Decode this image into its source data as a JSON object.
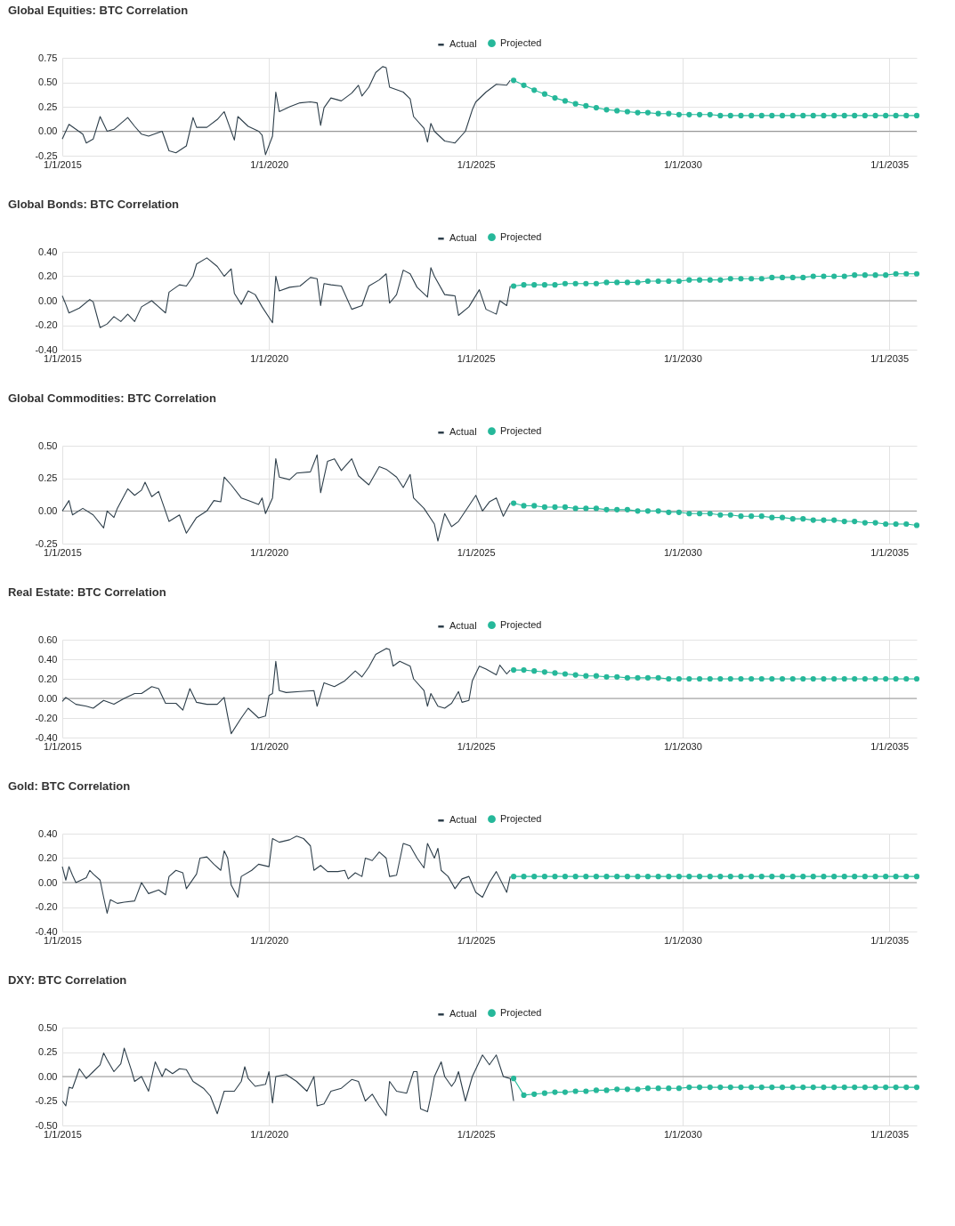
{
  "chart_data": [
    {
      "type": "line",
      "title": "Global Equities: BTC Correlation",
      "xlim": [
        "2015-01-01",
        "2035-09-01"
      ],
      "xticks": [
        {
          "value": "2015-01-01",
          "label": "1/1/2015"
        },
        {
          "value": "2020-01-01",
          "label": "1/1/2020"
        },
        {
          "value": "2025-01-01",
          "label": "1/1/2025"
        },
        {
          "value": "2030-01-01",
          "label": "1/1/2030"
        },
        {
          "value": "2035-01-01",
          "label": "1/1/2035"
        }
      ],
      "ylim": [
        -0.25,
        0.75
      ],
      "yticks": [
        {
          "value": -0.25,
          "label": "-0.25"
        },
        {
          "value": 0,
          "label": "0.00"
        },
        {
          "value": 0.25,
          "label": "0.25"
        },
        {
          "value": 0.5,
          "label": "0.50"
        },
        {
          "value": 0.75,
          "label": "0.75"
        }
      ],
      "grid": true,
      "legend": "top",
      "ref_lines": [
        {
          "axis": "y",
          "value": 0,
          "color": "#999999"
        }
      ],
      "series": [
        {
          "name": "Actual",
          "color": "#2d3e4a",
          "marker": "none",
          "x": [
            "2015-01",
            "2015-03",
            "2015-07",
            "2015-08",
            "2015-10",
            "2015-12",
            "2016-02",
            "2016-04",
            "2016-08",
            "2016-10",
            "2016-12",
            "2017-02",
            "2017-06",
            "2017-08",
            "2017-10",
            "2018-01",
            "2018-03",
            "2018-04",
            "2018-07",
            "2018-10",
            "2018-12",
            "2019-03",
            "2019-04",
            "2019-07",
            "2019-10",
            "2019-11",
            "2019-12",
            "2020-02",
            "2020-03",
            "2020-04",
            "2020-07",
            "2020-10",
            "2021-01",
            "2021-03",
            "2021-04",
            "2021-05",
            "2021-07",
            "2021-10",
            "2022-01",
            "2022-03",
            "2022-04",
            "2022-06",
            "2022-08",
            "2022-10",
            "2022-11",
            "2022-12",
            "2023-04",
            "2023-06",
            "2023-07",
            "2023-10",
            "2023-11",
            "2023-12",
            "2024-01",
            "2024-04",
            "2024-07",
            "2024-10",
            "2024-12",
            "2025-01",
            "2025-04",
            "2025-07",
            "2025-10",
            "2025-11"
          ],
          "values": [
            -0.08,
            0.07,
            -0.03,
            -0.12,
            -0.08,
            0.15,
            0.0,
            0.02,
            0.14,
            0.05,
            -0.03,
            -0.05,
            0.0,
            -0.2,
            -0.22,
            -0.15,
            0.14,
            0.04,
            0.04,
            0.12,
            0.2,
            -0.09,
            0.15,
            0.05,
            0.0,
            -0.04,
            -0.24,
            -0.05,
            0.4,
            0.2,
            0.25,
            0.29,
            0.3,
            0.29,
            0.06,
            0.24,
            0.34,
            0.31,
            0.39,
            0.47,
            0.36,
            0.45,
            0.6,
            0.66,
            0.65,
            0.45,
            0.4,
            0.33,
            0.15,
            0.03,
            -0.11,
            0.08,
            0.0,
            -0.1,
            -0.12,
            0.0,
            0.22,
            0.3,
            0.4,
            0.48,
            0.47,
            0.52
          ]
        },
        {
          "name": "Projected",
          "color": "#26b89a",
          "marker": "circle",
          "x": [
            "2025-12",
            "2026-03",
            "2026-06",
            "2026-09",
            "2026-12",
            "2027-03",
            "2027-06",
            "2027-09",
            "2027-12",
            "2028-03",
            "2028-06",
            "2028-09",
            "2028-12",
            "2029-03",
            "2029-06",
            "2029-09",
            "2029-12",
            "2030-03",
            "2030-06",
            "2030-09",
            "2030-12",
            "2031-03",
            "2031-06",
            "2031-09",
            "2031-12",
            "2032-03",
            "2032-06",
            "2032-09",
            "2032-12",
            "2033-03",
            "2033-06",
            "2033-09",
            "2033-12",
            "2034-03",
            "2034-06",
            "2034-09",
            "2034-12",
            "2035-03",
            "2035-06",
            "2035-09"
          ],
          "values": [
            0.52,
            0.47,
            0.42,
            0.38,
            0.34,
            0.31,
            0.28,
            0.26,
            0.24,
            0.22,
            0.21,
            0.2,
            0.19,
            0.19,
            0.18,
            0.18,
            0.17,
            0.17,
            0.17,
            0.17,
            0.16,
            0.16,
            0.16,
            0.16,
            0.16,
            0.16,
            0.16,
            0.16,
            0.16,
            0.16,
            0.16,
            0.16,
            0.16,
            0.16,
            0.16,
            0.16,
            0.16,
            0.16,
            0.16,
            0.16
          ]
        }
      ]
    },
    {
      "type": "line",
      "title": "Global Bonds: BTC Correlation",
      "xlim": [
        "2015-01-01",
        "2035-09-01"
      ],
      "xticks": [
        {
          "value": "2015-01-01",
          "label": "1/1/2015"
        },
        {
          "value": "2020-01-01",
          "label": "1/1/2020"
        },
        {
          "value": "2025-01-01",
          "label": "1/1/2025"
        },
        {
          "value": "2030-01-01",
          "label": "1/1/2030"
        },
        {
          "value": "2035-01-01",
          "label": "1/1/2035"
        }
      ],
      "ylim": [
        -0.4,
        0.4
      ],
      "yticks": [
        {
          "value": -0.4,
          "label": "-0.40"
        },
        {
          "value": -0.2,
          "label": "-0.20"
        },
        {
          "value": 0,
          "label": "0.00"
        },
        {
          "value": 0.2,
          "label": "0.20"
        },
        {
          "value": 0.4,
          "label": "0.40"
        }
      ],
      "grid": true,
      "legend": "top",
      "ref_lines": [
        {
          "axis": "y",
          "value": 0,
          "color": "#999999"
        }
      ],
      "series": [
        {
          "name": "Actual",
          "color": "#2d3e4a",
          "marker": "none",
          "x": [
            "2015-01",
            "2015-02",
            "2015-03",
            "2015-06",
            "2015-09",
            "2015-10",
            "2015-12",
            "2016-02",
            "2016-04",
            "2016-06",
            "2016-08",
            "2016-10",
            "2016-12",
            "2017-03",
            "2017-05",
            "2017-07",
            "2017-08",
            "2017-11",
            "2018-01",
            "2018-03",
            "2018-04",
            "2018-07",
            "2018-10",
            "2018-12",
            "2019-02",
            "2019-03",
            "2019-05",
            "2019-07",
            "2019-09",
            "2019-11",
            "2020-02",
            "2020-03",
            "2020-04",
            "2020-07",
            "2020-10",
            "2021-01",
            "2021-03",
            "2021-04",
            "2021-05",
            "2021-07",
            "2021-10",
            "2022-01",
            "2022-04",
            "2022-06",
            "2022-09",
            "2022-11",
            "2022-12",
            "2023-02",
            "2023-04",
            "2023-06",
            "2023-08",
            "2023-11",
            "2023-12",
            "2024-01",
            "2024-04",
            "2024-07",
            "2024-08",
            "2024-11",
            "2025-02",
            "2025-04",
            "2025-07",
            "2025-08",
            "2025-10",
            "2025-11"
          ],
          "values": [
            0.04,
            -0.03,
            -0.1,
            -0.06,
            0.01,
            -0.01,
            -0.22,
            -0.19,
            -0.13,
            -0.17,
            -0.11,
            -0.17,
            -0.05,
            0.0,
            -0.05,
            -0.1,
            0.07,
            0.13,
            0.12,
            0.2,
            0.3,
            0.35,
            0.28,
            0.2,
            0.26,
            0.06,
            -0.03,
            0.08,
            0.05,
            -0.05,
            -0.18,
            0.2,
            0.08,
            0.11,
            0.12,
            0.19,
            0.18,
            -0.04,
            0.14,
            0.13,
            0.12,
            -0.07,
            -0.04,
            0.12,
            0.17,
            0.22,
            -0.02,
            0.05,
            0.25,
            0.22,
            0.11,
            0.03,
            0.27,
            0.2,
            0.05,
            0.04,
            -0.12,
            -0.05,
            0.09,
            -0.07,
            -0.11,
            0.0,
            -0.04,
            0.12
          ]
        },
        {
          "name": "Projected",
          "color": "#26b89a",
          "marker": "circle",
          "x": [
            "2025-12",
            "2026-03",
            "2026-06",
            "2026-09",
            "2026-12",
            "2027-03",
            "2027-06",
            "2027-09",
            "2027-12",
            "2028-03",
            "2028-06",
            "2028-09",
            "2028-12",
            "2029-03",
            "2029-06",
            "2029-09",
            "2029-12",
            "2030-03",
            "2030-06",
            "2030-09",
            "2030-12",
            "2031-03",
            "2031-06",
            "2031-09",
            "2031-12",
            "2032-03",
            "2032-06",
            "2032-09",
            "2032-12",
            "2033-03",
            "2033-06",
            "2033-09",
            "2033-12",
            "2034-03",
            "2034-06",
            "2034-09",
            "2034-12",
            "2035-03",
            "2035-06",
            "2035-09"
          ],
          "values": [
            0.12,
            0.13,
            0.13,
            0.13,
            0.13,
            0.14,
            0.14,
            0.14,
            0.14,
            0.15,
            0.15,
            0.15,
            0.15,
            0.16,
            0.16,
            0.16,
            0.16,
            0.17,
            0.17,
            0.17,
            0.17,
            0.18,
            0.18,
            0.18,
            0.18,
            0.19,
            0.19,
            0.19,
            0.19,
            0.2,
            0.2,
            0.2,
            0.2,
            0.21,
            0.21,
            0.21,
            0.21,
            0.22,
            0.22,
            0.22
          ]
        }
      ]
    },
    {
      "type": "line",
      "title": "Global Commodities: BTC Correlation",
      "xlim": [
        "2015-01-01",
        "2035-09-01"
      ],
      "xticks": [
        {
          "value": "2015-01-01",
          "label": "1/1/2015"
        },
        {
          "value": "2020-01-01",
          "label": "1/1/2020"
        },
        {
          "value": "2025-01-01",
          "label": "1/1/2025"
        },
        {
          "value": "2030-01-01",
          "label": "1/1/2030"
        },
        {
          "value": "2035-01-01",
          "label": "1/1/2035"
        }
      ],
      "ylim": [
        -0.25,
        0.5
      ],
      "yticks": [
        {
          "value": -0.25,
          "label": "-0.25"
        },
        {
          "value": 0,
          "label": "0.00"
        },
        {
          "value": 0.25,
          "label": "0.25"
        },
        {
          "value": 0.5,
          "label": "0.50"
        }
      ],
      "grid": true,
      "legend": "top",
      "ref_lines": [
        {
          "axis": "y",
          "value": 0,
          "color": "#999999"
        }
      ],
      "series": [
        {
          "name": "Actual",
          "color": "#2d3e4a",
          "marker": "none",
          "x": [
            "2015-01",
            "2015-03",
            "2015-04",
            "2015-07",
            "2015-10",
            "2016-01",
            "2016-02",
            "2016-04",
            "2016-05",
            "2016-08",
            "2016-10",
            "2016-12",
            "2017-01",
            "2017-03",
            "2017-05",
            "2017-08",
            "2017-11",
            "2018-01",
            "2018-04",
            "2018-07",
            "2018-09",
            "2018-11",
            "2018-12",
            "2019-02",
            "2019-05",
            "2019-07",
            "2019-10",
            "2019-11",
            "2019-12",
            "2020-02",
            "2020-03",
            "2020-04",
            "2020-07",
            "2020-09",
            "2021-01",
            "2021-03",
            "2021-04",
            "2021-06",
            "2021-08",
            "2021-10",
            "2022-01",
            "2022-03",
            "2022-06",
            "2022-09",
            "2022-11",
            "2023-02",
            "2023-04",
            "2023-06",
            "2023-07",
            "2023-10",
            "2024-01",
            "2024-02",
            "2024-04",
            "2024-06",
            "2024-08",
            "2024-11",
            "2025-01",
            "2025-03",
            "2025-05",
            "2025-07",
            "2025-09",
            "2025-11"
          ],
          "values": [
            0.0,
            0.08,
            -0.03,
            0.02,
            -0.03,
            -0.13,
            0.0,
            -0.05,
            0.02,
            0.17,
            0.12,
            0.16,
            0.22,
            0.11,
            0.15,
            -0.08,
            -0.03,
            -0.17,
            -0.05,
            0.0,
            0.08,
            0.07,
            0.26,
            0.2,
            0.1,
            0.08,
            0.05,
            0.1,
            -0.02,
            0.1,
            0.4,
            0.26,
            0.24,
            0.29,
            0.3,
            0.43,
            0.14,
            0.38,
            0.4,
            0.31,
            0.4,
            0.27,
            0.2,
            0.34,
            0.32,
            0.26,
            0.18,
            0.28,
            0.1,
            0.02,
            -0.1,
            -0.23,
            -0.02,
            -0.12,
            -0.08,
            0.04,
            0.12,
            0.0,
            0.07,
            0.1,
            -0.04,
            0.06
          ]
        },
        {
          "name": "Projected",
          "color": "#26b89a",
          "marker": "circle",
          "x": [
            "2025-12",
            "2026-03",
            "2026-06",
            "2026-09",
            "2026-12",
            "2027-03",
            "2027-06",
            "2027-09",
            "2027-12",
            "2028-03",
            "2028-06",
            "2028-09",
            "2028-12",
            "2029-03",
            "2029-06",
            "2029-09",
            "2029-12",
            "2030-03",
            "2030-06",
            "2030-09",
            "2030-12",
            "2031-03",
            "2031-06",
            "2031-09",
            "2031-12",
            "2032-03",
            "2032-06",
            "2032-09",
            "2032-12",
            "2033-03",
            "2033-06",
            "2033-09",
            "2033-12",
            "2034-03",
            "2034-06",
            "2034-09",
            "2034-12",
            "2035-03",
            "2035-06",
            "2035-09"
          ],
          "values": [
            0.06,
            0.04,
            0.04,
            0.03,
            0.03,
            0.03,
            0.02,
            0.02,
            0.02,
            0.01,
            0.01,
            0.01,
            0.0,
            0.0,
            0.0,
            -0.01,
            -0.01,
            -0.02,
            -0.02,
            -0.02,
            -0.03,
            -0.03,
            -0.04,
            -0.04,
            -0.04,
            -0.05,
            -0.05,
            -0.06,
            -0.06,
            -0.07,
            -0.07,
            -0.07,
            -0.08,
            -0.08,
            -0.09,
            -0.09,
            -0.1,
            -0.1,
            -0.1,
            -0.11
          ]
        }
      ]
    },
    {
      "type": "line",
      "title": "Real Estate: BTC Correlation",
      "xlim": [
        "2015-01-01",
        "2035-09-01"
      ],
      "xticks": [
        {
          "value": "2015-01-01",
          "label": "1/1/2015"
        },
        {
          "value": "2020-01-01",
          "label": "1/1/2020"
        },
        {
          "value": "2025-01-01",
          "label": "1/1/2025"
        },
        {
          "value": "2030-01-01",
          "label": "1/1/2030"
        },
        {
          "value": "2035-01-01",
          "label": "1/1/2035"
        }
      ],
      "ylim": [
        -0.4,
        0.6
      ],
      "yticks": [
        {
          "value": -0.4,
          "label": "-0.40"
        },
        {
          "value": -0.2,
          "label": "-0.20"
        },
        {
          "value": 0,
          "label": "0.00"
        },
        {
          "value": 0.2,
          "label": "0.20"
        },
        {
          "value": 0.4,
          "label": "0.40"
        },
        {
          "value": 0.6,
          "label": "0.60"
        }
      ],
      "grid": true,
      "legend": "top",
      "ref_lines": [
        {
          "axis": "y",
          "value": 0,
          "color": "#999999"
        }
      ],
      "series": [
        {
          "name": "Actual",
          "color": "#2d3e4a",
          "marker": "none",
          "x": [
            "2015-01",
            "2015-02",
            "2015-05",
            "2015-08",
            "2015-10",
            "2016-01",
            "2016-04",
            "2016-07",
            "2016-10",
            "2016-12",
            "2017-03",
            "2017-05",
            "2017-07",
            "2017-10",
            "2017-12",
            "2018-02",
            "2018-04",
            "2018-07",
            "2018-10",
            "2018-12",
            "2019-01",
            "2019-02",
            "2019-05",
            "2019-07",
            "2019-10",
            "2019-12",
            "2020-01",
            "2020-02",
            "2020-03",
            "2020-04",
            "2020-06",
            "2020-10",
            "2021-02",
            "2021-03",
            "2021-05",
            "2021-08",
            "2021-11",
            "2022-02",
            "2022-04",
            "2022-06",
            "2022-08",
            "2022-11",
            "2022-12",
            "2023-01",
            "2023-03",
            "2023-06",
            "2023-07",
            "2023-10",
            "2023-11",
            "2023-12",
            "2024-02",
            "2024-04",
            "2024-06",
            "2024-08",
            "2024-09",
            "2024-11",
            "2024-12",
            "2025-02",
            "2025-04",
            "2025-07",
            "2025-08",
            "2025-10",
            "2025-11"
          ],
          "values": [
            -0.03,
            0.01,
            -0.06,
            -0.08,
            -0.1,
            -0.02,
            -0.06,
            0.0,
            0.05,
            0.05,
            0.12,
            0.1,
            -0.05,
            -0.05,
            -0.12,
            0.1,
            -0.04,
            -0.06,
            -0.06,
            0.01,
            -0.18,
            -0.36,
            -0.2,
            -0.1,
            -0.2,
            -0.18,
            0.03,
            0.05,
            0.38,
            0.08,
            0.06,
            0.07,
            0.08,
            -0.08,
            0.16,
            0.12,
            0.18,
            0.28,
            0.22,
            0.32,
            0.45,
            0.51,
            0.5,
            0.33,
            0.38,
            0.33,
            0.2,
            0.08,
            -0.08,
            0.05,
            -0.08,
            -0.1,
            -0.05,
            0.07,
            -0.04,
            -0.02,
            0.18,
            0.33,
            0.3,
            0.24,
            0.34,
            0.25,
            0.29
          ]
        },
        {
          "name": "Projected",
          "color": "#26b89a",
          "marker": "circle",
          "x": [
            "2025-12",
            "2026-03",
            "2026-06",
            "2026-09",
            "2026-12",
            "2027-03",
            "2027-06",
            "2027-09",
            "2027-12",
            "2028-03",
            "2028-06",
            "2028-09",
            "2028-12",
            "2029-03",
            "2029-06",
            "2029-09",
            "2029-12",
            "2030-03",
            "2030-06",
            "2030-09",
            "2030-12",
            "2031-03",
            "2031-06",
            "2031-09",
            "2031-12",
            "2032-03",
            "2032-06",
            "2032-09",
            "2032-12",
            "2033-03",
            "2033-06",
            "2033-09",
            "2033-12",
            "2034-03",
            "2034-06",
            "2034-09",
            "2034-12",
            "2035-03",
            "2035-06",
            "2035-09"
          ],
          "values": [
            0.29,
            0.29,
            0.28,
            0.27,
            0.26,
            0.25,
            0.24,
            0.23,
            0.23,
            0.22,
            0.22,
            0.21,
            0.21,
            0.21,
            0.21,
            0.2,
            0.2,
            0.2,
            0.2,
            0.2,
            0.2,
            0.2,
            0.2,
            0.2,
            0.2,
            0.2,
            0.2,
            0.2,
            0.2,
            0.2,
            0.2,
            0.2,
            0.2,
            0.2,
            0.2,
            0.2,
            0.2,
            0.2,
            0.2,
            0.2
          ]
        }
      ]
    },
    {
      "type": "line",
      "title": "Gold: BTC Correlation",
      "xlim": [
        "2015-01-01",
        "2035-09-01"
      ],
      "xticks": [
        {
          "value": "2015-01-01",
          "label": "1/1/2015"
        },
        {
          "value": "2020-01-01",
          "label": "1/1/2020"
        },
        {
          "value": "2025-01-01",
          "label": "1/1/2025"
        },
        {
          "value": "2030-01-01",
          "label": "1/1/2030"
        },
        {
          "value": "2035-01-01",
          "label": "1/1/2035"
        }
      ],
      "ylim": [
        -0.4,
        0.4
      ],
      "yticks": [
        {
          "value": -0.4,
          "label": "-0.40"
        },
        {
          "value": -0.2,
          "label": "-0.20"
        },
        {
          "value": 0,
          "label": "0.00"
        },
        {
          "value": 0.2,
          "label": "0.20"
        },
        {
          "value": 0.4,
          "label": "0.40"
        }
      ],
      "grid": true,
      "legend": "top",
      "ref_lines": [
        {
          "axis": "y",
          "value": 0,
          "color": "#999999"
        }
      ],
      "series": [
        {
          "name": "Actual",
          "color": "#2d3e4a",
          "marker": "none",
          "x": [
            "2015-01",
            "2015-02",
            "2015-03",
            "2015-04",
            "2015-05",
            "2015-08",
            "2015-09",
            "2015-10",
            "2015-12",
            "2016-01",
            "2016-02",
            "2016-03",
            "2016-05",
            "2016-07",
            "2016-10",
            "2016-12",
            "2017-02",
            "2017-05",
            "2017-07",
            "2017-08",
            "2017-10",
            "2017-12",
            "2018-01",
            "2018-04",
            "2018-05",
            "2018-07",
            "2018-09",
            "2018-11",
            "2018-12",
            "2019-01",
            "2019-02",
            "2019-04",
            "2019-05",
            "2019-08",
            "2019-10",
            "2020-01",
            "2020-02",
            "2020-04",
            "2020-07",
            "2020-09",
            "2020-11",
            "2021-01",
            "2021-02",
            "2021-04",
            "2021-06",
            "2021-09",
            "2021-11",
            "2021-12",
            "2022-02",
            "2022-04",
            "2022-05",
            "2022-07",
            "2022-09",
            "2022-11",
            "2022-12",
            "2023-02",
            "2023-04",
            "2023-06",
            "2023-08",
            "2023-10",
            "2023-11",
            "2024-01",
            "2024-02",
            "2024-03",
            "2024-05",
            "2024-07",
            "2024-09",
            "2024-11",
            "2025-01",
            "2025-03",
            "2025-05",
            "2025-07",
            "2025-10",
            "2025-11"
          ],
          "values": [
            0.13,
            0.02,
            0.13,
            0.06,
            0.0,
            0.04,
            0.1,
            0.07,
            0.02,
            -0.12,
            -0.25,
            -0.14,
            -0.17,
            -0.16,
            -0.15,
            0.0,
            -0.09,
            -0.06,
            -0.1,
            0.05,
            0.1,
            0.08,
            -0.05,
            0.07,
            0.2,
            0.21,
            0.15,
            0.1,
            0.26,
            0.2,
            -0.02,
            -0.12,
            0.05,
            0.1,
            0.15,
            0.13,
            0.36,
            0.33,
            0.35,
            0.38,
            0.36,
            0.3,
            0.1,
            0.14,
            0.09,
            0.09,
            0.1,
            0.03,
            0.08,
            0.05,
            0.2,
            0.18,
            0.25,
            0.2,
            0.05,
            0.06,
            0.32,
            0.3,
            0.2,
            0.12,
            0.32,
            0.2,
            0.28,
            0.1,
            0.05,
            -0.05,
            0.03,
            0.05,
            -0.08,
            -0.12,
            0.0,
            0.09,
            -0.08,
            0.05
          ]
        },
        {
          "name": "Projected",
          "color": "#26b89a",
          "marker": "circle",
          "x": [
            "2025-12",
            "2026-03",
            "2026-06",
            "2026-09",
            "2026-12",
            "2027-03",
            "2027-06",
            "2027-09",
            "2027-12",
            "2028-03",
            "2028-06",
            "2028-09",
            "2028-12",
            "2029-03",
            "2029-06",
            "2029-09",
            "2029-12",
            "2030-03",
            "2030-06",
            "2030-09",
            "2030-12",
            "2031-03",
            "2031-06",
            "2031-09",
            "2031-12",
            "2032-03",
            "2032-06",
            "2032-09",
            "2032-12",
            "2033-03",
            "2033-06",
            "2033-09",
            "2033-12",
            "2034-03",
            "2034-06",
            "2034-09",
            "2034-12",
            "2035-03",
            "2035-06",
            "2035-09"
          ],
          "values": [
            0.05,
            0.05,
            0.05,
            0.05,
            0.05,
            0.05,
            0.05,
            0.05,
            0.05,
            0.05,
            0.05,
            0.05,
            0.05,
            0.05,
            0.05,
            0.05,
            0.05,
            0.05,
            0.05,
            0.05,
            0.05,
            0.05,
            0.05,
            0.05,
            0.05,
            0.05,
            0.05,
            0.05,
            0.05,
            0.05,
            0.05,
            0.05,
            0.05,
            0.05,
            0.05,
            0.05,
            0.05,
            0.05,
            0.05,
            0.05
          ]
        }
      ]
    },
    {
      "type": "line",
      "title": "DXY: BTC Correlation",
      "xlim": [
        "2015-01-01",
        "2035-09-01"
      ],
      "xticks": [
        {
          "value": "2015-01-01",
          "label": "1/1/2015"
        },
        {
          "value": "2020-01-01",
          "label": "1/1/2020"
        },
        {
          "value": "2025-01-01",
          "label": "1/1/2025"
        },
        {
          "value": "2030-01-01",
          "label": "1/1/2030"
        },
        {
          "value": "2035-01-01",
          "label": "1/1/2035"
        }
      ],
      "ylim": [
        -0.5,
        0.5
      ],
      "yticks": [
        {
          "value": -0.5,
          "label": "-0.50"
        },
        {
          "value": -0.25,
          "label": "-0.25"
        },
        {
          "value": 0,
          "label": "0.00"
        },
        {
          "value": 0.25,
          "label": "0.25"
        },
        {
          "value": 0.5,
          "label": "0.50"
        }
      ],
      "grid": true,
      "legend": "top",
      "ref_lines": [
        {
          "axis": "y",
          "value": 0,
          "color": "#999999"
        }
      ],
      "series": [
        {
          "name": "Actual",
          "color": "#2d3e4a",
          "marker": "none",
          "x": [
            "2015-01",
            "2015-02",
            "2015-03",
            "2015-04",
            "2015-06",
            "2015-08",
            "2015-10",
            "2015-12",
            "2016-01",
            "2016-02",
            "2016-04",
            "2016-06",
            "2016-07",
            "2016-09",
            "2016-10",
            "2016-12",
            "2017-02",
            "2017-04",
            "2017-06",
            "2017-07",
            "2017-09",
            "2017-11",
            "2018-01",
            "2018-03",
            "2018-06",
            "2018-08",
            "2018-10",
            "2018-12",
            "2019-03",
            "2019-05",
            "2019-06",
            "2019-07",
            "2019-09",
            "2019-12",
            "2020-01",
            "2020-02",
            "2020-03",
            "2020-06",
            "2020-09",
            "2020-12",
            "2021-02",
            "2021-03",
            "2021-05",
            "2021-07",
            "2021-10",
            "2022-01",
            "2022-03",
            "2022-05",
            "2022-07",
            "2022-09",
            "2022-11",
            "2022-12",
            "2023-02",
            "2023-05",
            "2023-07",
            "2023-08",
            "2023-09",
            "2023-11",
            "2023-12",
            "2024-01",
            "2024-03",
            "2024-04",
            "2024-06",
            "2024-07",
            "2024-08",
            "2024-10",
            "2024-12",
            "2025-03",
            "2025-05",
            "2025-07",
            "2025-09",
            "2025-10",
            "2025-11",
            "2025-12"
          ],
          "values": [
            -0.25,
            -0.3,
            -0.11,
            -0.12,
            0.08,
            -0.02,
            0.05,
            0.12,
            0.24,
            0.17,
            0.05,
            0.13,
            0.29,
            0.07,
            -0.05,
            0.0,
            -0.15,
            0.15,
            0.0,
            0.08,
            0.03,
            0.08,
            0.07,
            -0.05,
            -0.12,
            -0.2,
            -0.38,
            -0.15,
            -0.15,
            -0.05,
            0.1,
            -0.02,
            -0.1,
            -0.08,
            0.05,
            -0.27,
            0.0,
            0.02,
            -0.05,
            -0.15,
            0.0,
            -0.3,
            -0.28,
            -0.15,
            -0.12,
            -0.03,
            -0.05,
            -0.25,
            -0.18,
            -0.3,
            -0.4,
            -0.05,
            -0.15,
            -0.17,
            0.05,
            0.05,
            -0.33,
            -0.36,
            -0.2,
            0.0,
            0.15,
            0.0,
            -0.1,
            -0.05,
            0.05,
            -0.25,
            0.0,
            0.22,
            0.12,
            0.22,
            0.0,
            -0.01,
            -0.02,
            -0.25
          ]
        },
        {
          "name": "Projected",
          "color": "#26b89a",
          "marker": "circle",
          "x": [
            "2025-12",
            "2026-03",
            "2026-06",
            "2026-09",
            "2026-12",
            "2027-03",
            "2027-06",
            "2027-09",
            "2027-12",
            "2028-03",
            "2028-06",
            "2028-09",
            "2028-12",
            "2029-03",
            "2029-06",
            "2029-09",
            "2029-12",
            "2030-03",
            "2030-06",
            "2030-09",
            "2030-12",
            "2031-03",
            "2031-06",
            "2031-09",
            "2031-12",
            "2032-03",
            "2032-06",
            "2032-09",
            "2032-12",
            "2033-03",
            "2033-06",
            "2033-09",
            "2033-12",
            "2034-03",
            "2034-06",
            "2034-09",
            "2034-12",
            "2035-03",
            "2035-06",
            "2035-09"
          ],
          "values": [
            -0.02,
            -0.19,
            -0.18,
            -0.17,
            -0.16,
            -0.16,
            -0.15,
            -0.15,
            -0.14,
            -0.14,
            -0.13,
            -0.13,
            -0.13,
            -0.12,
            -0.12,
            -0.12,
            -0.12,
            -0.11,
            -0.11,
            -0.11,
            -0.11,
            -0.11,
            -0.11,
            -0.11,
            -0.11,
            -0.11,
            -0.11,
            -0.11,
            -0.11,
            -0.11,
            -0.11,
            -0.11,
            -0.11,
            -0.11,
            -0.11,
            -0.11,
            -0.11,
            -0.11,
            -0.11,
            -0.11
          ]
        }
      ]
    }
  ]
}
